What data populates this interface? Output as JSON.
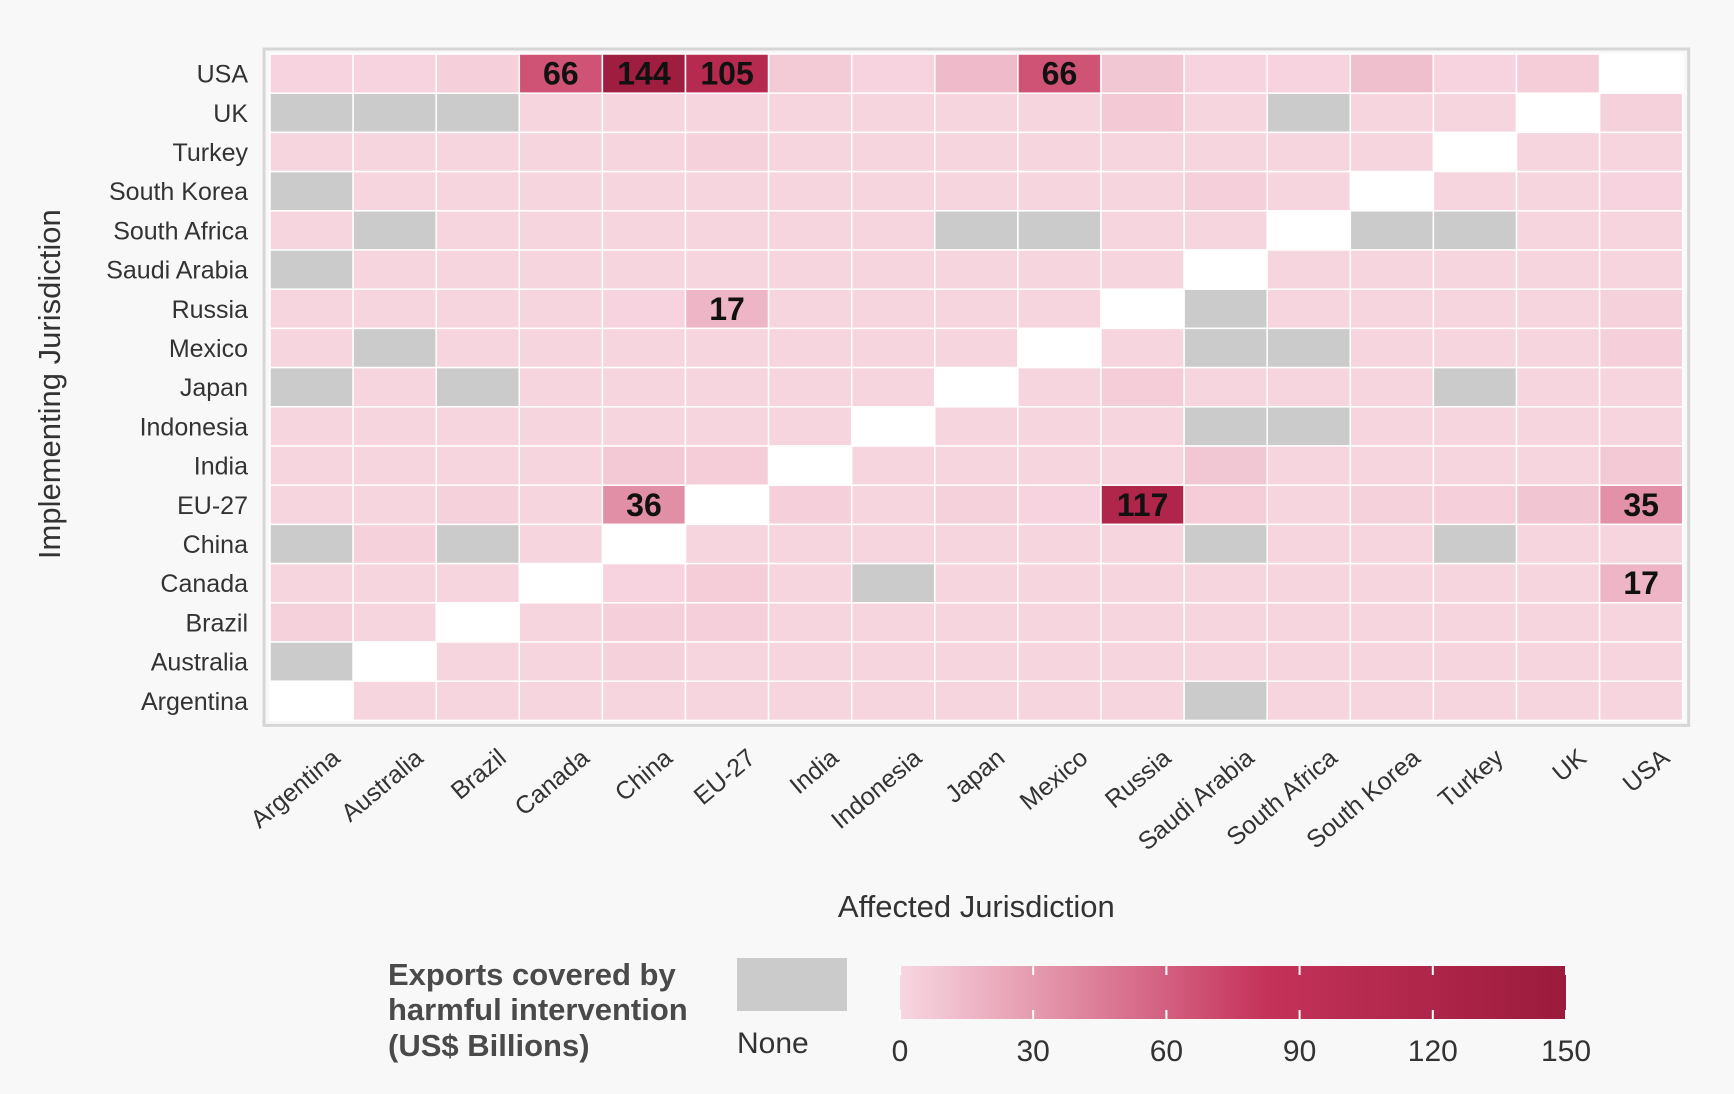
{
  "chart_data": {
    "type": "heatmap",
    "xlabel": "Affected Jurisdiction",
    "ylabel": "Implementing Jurisdiction",
    "x_categories": [
      "Argentina",
      "Australia",
      "Brazil",
      "Canada",
      "China",
      "EU-27",
      "India",
      "Indonesia",
      "Japan",
      "Mexico",
      "Russia",
      "Saudi Arabia",
      "South Africa",
      "South Korea",
      "Turkey",
      "UK",
      "USA"
    ],
    "y_categories": [
      "USA",
      "UK",
      "Turkey",
      "South Korea",
      "South Africa",
      "Saudi Arabia",
      "Russia",
      "Mexico",
      "Japan",
      "Indonesia",
      "India",
      "EU-27",
      "China",
      "Canada",
      "Brazil",
      "Australia",
      "Argentina"
    ],
    "values": [
      [
        2,
        2,
        4,
        66,
        144,
        105,
        6,
        2,
        14,
        66,
        8,
        2,
        2,
        12,
        2,
        5,
        null
      ],
      [
        -1,
        -1,
        -1,
        1,
        1,
        1,
        1,
        1,
        1,
        1,
        7,
        1,
        -1,
        1,
        1,
        null,
        3
      ],
      [
        1,
        1,
        1,
        1,
        1,
        3,
        1,
        1,
        1,
        1,
        1,
        1,
        1,
        1,
        null,
        1,
        1
      ],
      [
        -1,
        1,
        1,
        1,
        1,
        1,
        1,
        1,
        1,
        1,
        1,
        4,
        1,
        null,
        1,
        1,
        2
      ],
      [
        1,
        -1,
        1,
        1,
        1,
        1,
        1,
        1,
        -1,
        -1,
        1,
        1,
        null,
        -1,
        -1,
        1,
        1
      ],
      [
        -1,
        1,
        1,
        1,
        1,
        1,
        1,
        1,
        1,
        1,
        1,
        null,
        1,
        1,
        1,
        1,
        1
      ],
      [
        1,
        1,
        1,
        1,
        2,
        17,
        1,
        1,
        1,
        1,
        null,
        -1,
        1,
        1,
        1,
        1,
        3
      ],
      [
        1,
        -1,
        1,
        1,
        1,
        1,
        1,
        1,
        1,
        null,
        1,
        -1,
        -1,
        1,
        1,
        1,
        4
      ],
      [
        -1,
        1,
        -1,
        1,
        1,
        1,
        1,
        1,
        null,
        1,
        5,
        1,
        1,
        1,
        -1,
        1,
        1
      ],
      [
        1,
        1,
        1,
        1,
        1,
        1,
        1,
        null,
        1,
        1,
        1,
        -1,
        -1,
        1,
        1,
        1,
        1
      ],
      [
        1,
        1,
        1,
        1,
        7,
        5,
        null,
        1,
        1,
        1,
        1,
        8,
        1,
        1,
        1,
        1,
        7
      ],
      [
        1,
        1,
        3,
        1,
        36,
        null,
        4,
        1,
        3,
        2,
        117,
        5,
        1,
        3,
        4,
        9,
        35
      ],
      [
        -1,
        3,
        -1,
        1,
        null,
        1,
        1,
        1,
        1,
        1,
        1,
        -1,
        1,
        1,
        -1,
        1,
        1
      ],
      [
        1,
        1,
        1,
        null,
        2,
        5,
        1,
        -1,
        1,
        1,
        1,
        1,
        1,
        1,
        1,
        1,
        17
      ],
      [
        3,
        1,
        null,
        1,
        4,
        4,
        1,
        1,
        1,
        1,
        1,
        1,
        1,
        1,
        1,
        1,
        1
      ],
      [
        -1,
        null,
        1,
        1,
        3,
        1,
        1,
        1,
        1,
        1,
        1,
        1,
        1,
        1,
        1,
        1,
        1
      ],
      [
        null,
        1,
        1,
        1,
        1,
        1,
        1,
        1,
        1,
        1,
        1,
        -1,
        1,
        1,
        1,
        1,
        1
      ]
    ],
    "value_encoding": "-1 = None (grey); null = same jurisdiction (blank)",
    "labeled_cells": [
      "66",
      "144",
      "105",
      "66",
      "17",
      "36",
      "117",
      "35"
    ],
    "legend": {
      "title_lines": [
        "Exports covered by",
        "harmful intervention",
        "(US$ Billions)"
      ],
      "none_label": "None",
      "ticks": [
        "0",
        "30",
        "60",
        "90",
        "120",
        "150"
      ],
      "range": [
        0,
        150
      ]
    },
    "colors": {
      "low": "#f7d7e1",
      "mid": "#c5325a",
      "high": "#9b1b3c",
      "none": "#cbcbcb",
      "blank": "#ffffff",
      "grid": "#ffffff",
      "frame": "#d9d9d9"
    }
  }
}
